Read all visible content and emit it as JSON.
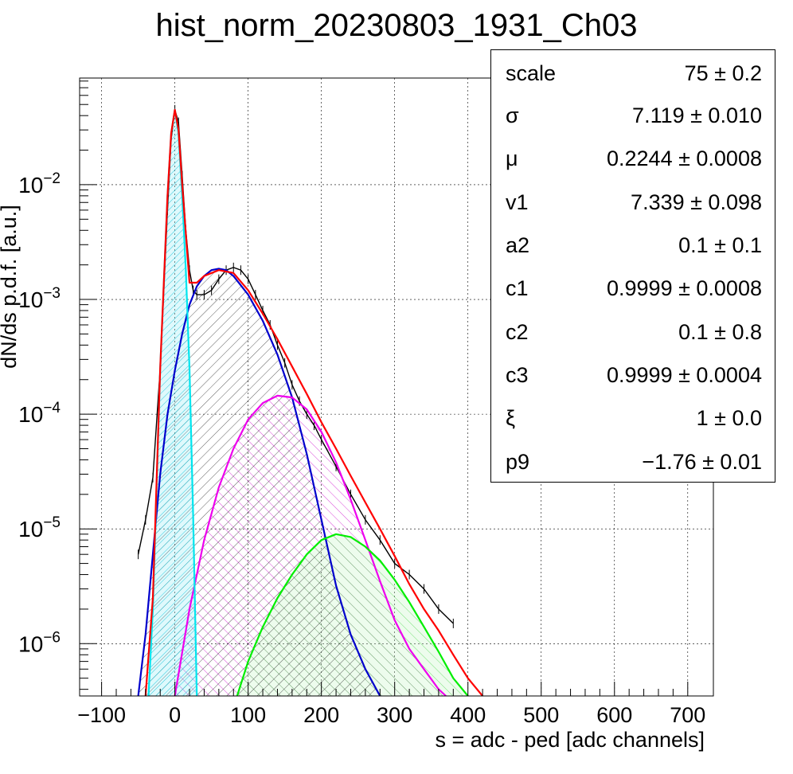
{
  "chart_data": {
    "type": "line",
    "title": "hist_norm_20230803_1931_Ch03",
    "xlabel": "s = adc - ped [adc channels]",
    "ylabel": "dN/ds p.d.f. [a.u.]",
    "xlim": [
      -130,
      735
    ],
    "ylim": [
      3.5e-07,
      0.085
    ],
    "yscale": "log",
    "grid": true,
    "x_ticks": [
      -100,
      0,
      100,
      200,
      300,
      400,
      500,
      600,
      700
    ],
    "x_tick_labels": [
      "−100",
      "0",
      "100",
      "200",
      "300",
      "400",
      "500",
      "600",
      "700"
    ],
    "y_ticks": [
      {
        "value": 1e-06,
        "base": "10",
        "exp": "−6"
      },
      {
        "value": 1e-05,
        "base": "10",
        "exp": "−5"
      },
      {
        "value": 0.0001,
        "base": "10",
        "exp": "−4"
      },
      {
        "value": 0.001,
        "base": "10",
        "exp": "−3"
      },
      {
        "value": 0.01,
        "base": "10",
        "exp": "−2"
      }
    ],
    "series": [
      {
        "color": "#000000",
        "style": "histogram",
        "x": [
          -50,
          -40,
          -30,
          -20,
          -10,
          -5,
          0,
          5,
          10,
          15,
          20,
          25,
          30,
          40,
          50,
          60,
          70,
          80,
          90,
          100,
          110,
          120,
          130,
          140,
          150,
          160,
          170,
          180,
          190,
          200,
          220,
          240,
          260,
          280,
          300,
          320,
          340,
          360,
          380
        ],
        "y": [
          6e-06,
          1.2e-05,
          2.8e-05,
          0.00025,
          0.006,
          0.025,
          0.045,
          0.035,
          0.012,
          0.004,
          0.0018,
          0.0012,
          0.0011,
          0.0011,
          0.0012,
          0.0015,
          0.0018,
          0.0019,
          0.0018,
          0.0015,
          0.0011,
          0.0008,
          0.0006,
          0.0004,
          0.00028,
          0.00018,
          0.00013,
          0.0001,
          8e-05,
          6e-05,
          3.5e-05,
          2e-05,
          1.2e-05,
          8e-06,
          5e-06,
          4e-06,
          3e-06,
          2e-06,
          1.5e-06
        ]
      },
      {
        "color": "#ff0000",
        "x": [
          -40,
          -30,
          -20,
          -10,
          -5,
          0,
          5,
          10,
          20,
          30,
          40,
          60,
          80,
          100,
          120,
          140,
          160,
          180,
          200,
          220,
          240,
          260,
          280,
          300,
          320,
          340,
          360,
          380,
          400,
          420
        ],
        "y": [
          3.5e-07,
          2.5e-06,
          0.00025,
          0.008,
          0.028,
          0.045,
          0.03,
          0.01,
          0.0014,
          0.0014,
          0.0016,
          0.0018,
          0.0017,
          0.0012,
          0.00075,
          0.00045,
          0.00026,
          0.00015,
          8.5e-05,
          5e-05,
          2.9e-05,
          1.7e-05,
          1e-05,
          5.8e-06,
          3.3e-06,
          2e-06,
          1.3e-06,
          8e-07,
          5e-07,
          3.5e-07
        ]
      },
      {
        "color": "#00e5ee",
        "fill": true,
        "x": [
          -36,
          -30,
          -20,
          -10,
          -5,
          0,
          5,
          10,
          15,
          20,
          25,
          30
        ],
        "y": [
          3.5e-07,
          2e-06,
          0.00025,
          0.008,
          0.028,
          0.045,
          0.028,
          0.008,
          0.0018,
          0.00025,
          1.3e-05,
          3.5e-07
        ]
      },
      {
        "color": "#0000cc",
        "fill": true,
        "x": [
          -50,
          -40,
          -30,
          -20,
          -10,
          0,
          10,
          20,
          30,
          40,
          50,
          60,
          70,
          80,
          100,
          120,
          140,
          160,
          180,
          200,
          220,
          240,
          260,
          280
        ],
        "y": [
          3.5e-07,
          1.2e-06,
          6e-06,
          3e-05,
          0.0001,
          0.00024,
          0.0005,
          0.0009,
          0.0013,
          0.0016,
          0.0018,
          0.00185,
          0.0018,
          0.0016,
          0.0011,
          0.00065,
          0.00033,
          0.00014,
          4.5e-05,
          1.2e-05,
          3.2e-06,
          1.2e-06,
          6e-07,
          3.5e-07
        ]
      },
      {
        "color": "#ee00ee",
        "fill": true,
        "x": [
          0,
          20,
          40,
          60,
          80,
          100,
          120,
          140,
          160,
          180,
          200,
          220,
          240,
          260,
          280,
          300,
          320,
          340,
          360,
          370
        ],
        "y": [
          3.5e-07,
          2e-06,
          8e-06,
          2.3e-05,
          5e-05,
          9e-05,
          0.000125,
          0.000145,
          0.00014,
          0.00011,
          7e-05,
          3.8e-05,
          1.8e-05,
          8e-06,
          3.5e-06,
          1.6e-06,
          9e-07,
          6e-07,
          4e-07,
          3.5e-07
        ]
      },
      {
        "color": "#00ee00",
        "fill": true,
        "x": [
          85,
          100,
          120,
          140,
          160,
          180,
          200,
          220,
          240,
          260,
          280,
          300,
          320,
          340,
          360,
          380,
          400
        ],
        "y": [
          3.5e-07,
          7e-07,
          1.4e-06,
          2.5e-06,
          4e-06,
          6e-06,
          8e-06,
          9e-06,
          8.5e-06,
          7e-06,
          5.3e-06,
          3.6e-06,
          2.3e-06,
          1.4e-06,
          8.5e-07,
          5e-07,
          3.5e-07
        ]
      }
    ],
    "stats_box": [
      {
        "name": "scale",
        "value": "75 ± 0.2"
      },
      {
        "name": "σ",
        "value": "7.119 ± 0.010"
      },
      {
        "name": "μ",
        "value": "0.2244 ± 0.0008"
      },
      {
        "name": "v1",
        "value": "7.339 ± 0.098"
      },
      {
        "name": "a2",
        "value": "0.1 ± 0.1"
      },
      {
        "name": "c1",
        "value": "0.9999 ± 0.0008"
      },
      {
        "name": "c2",
        "value": "0.1 ± 0.8"
      },
      {
        "name": "c3",
        "value": "0.9999 ± 0.0004"
      },
      {
        "name": "ξ",
        "value": "1 ± 0.0"
      },
      {
        "name": "p9",
        "value": "−1.76 ± 0.01"
      }
    ]
  }
}
